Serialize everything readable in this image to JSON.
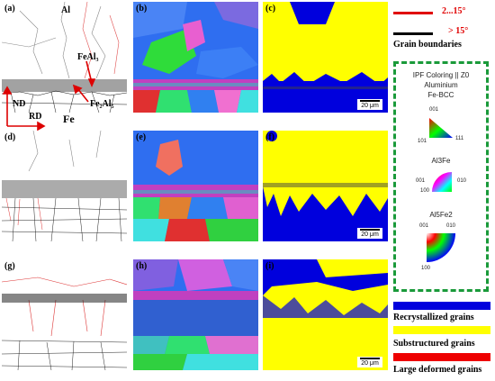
{
  "panels": {
    "a": "(a)",
    "b": "(b)",
    "c": "(c)",
    "d": "(d)",
    "e": "(e)",
    "f": "(f)",
    "g": "(g)",
    "h": "(h)",
    "i": "(i)"
  },
  "annotations": {
    "al": "Al",
    "feal3": "FeAl₃",
    "fe2al5": "Fe₂Al₅",
    "fe": "Fe",
    "nd": "ND",
    "rd": "RD"
  },
  "scale_bar": "20 μm",
  "boundary_legend": {
    "low_angle": "2...15°",
    "high_angle": "> 15°",
    "title": "Grain boundaries",
    "low_color": "#e00000",
    "high_color": "#000000"
  },
  "ipf": {
    "title": "IPF Coloring || Z0",
    "phase1": "Aluminium",
    "phase2": "Fe-BCC",
    "phase3": "Al3Fe",
    "phase4": "Al5Fe2",
    "t1_001": "001",
    "t1_101": "101",
    "t1_111": "111",
    "t2_001": "001",
    "t2_010": "010",
    "t2_100": "100",
    "t3_001": "001",
    "t3_010": "010",
    "t3_100": "100",
    "border_color": "#1a9a3a"
  },
  "grain_legend": [
    {
      "label": "Recrystallized grains",
      "color": "#0000dd"
    },
    {
      "label": "Substructured grains",
      "color": "#ffff00"
    },
    {
      "label": "Large deformed grains",
      "color": "#ee0000"
    }
  ]
}
